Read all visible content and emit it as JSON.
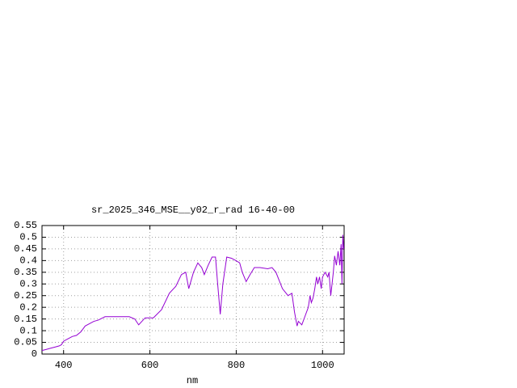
{
  "chart_data": {
    "type": "line",
    "title": "sr_2025_346_MSE__y02_r_rad 16-40-00",
    "xlabel": "nm",
    "color": "#9400d3",
    "grid": true,
    "xlim": [
      350,
      1050
    ],
    "xticks": [
      400,
      600,
      800,
      1000
    ],
    "ylim": [
      0,
      0.55
    ],
    "yticks": [
      0,
      0.05,
      0.1,
      0.15,
      0.2,
      0.25,
      0.3,
      0.35,
      0.4,
      0.45,
      0.5,
      0.55
    ],
    "x": [
      350,
      360,
      370,
      380,
      390,
      395,
      400,
      410,
      420,
      430,
      440,
      450,
      460,
      470,
      480,
      496,
      510,
      530,
      552,
      565,
      574,
      589,
      608,
      627,
      645,
      660,
      673,
      683,
      690,
      701,
      711,
      720,
      726,
      735,
      744,
      752,
      757,
      763,
      769,
      778,
      789,
      799,
      808,
      814,
      823,
      832,
      842,
      855,
      873,
      883,
      892,
      907,
      920,
      929,
      935,
      941,
      944,
      952,
      959,
      967,
      971,
      974,
      978,
      982,
      986,
      989,
      993,
      997,
      1000,
      1006,
      1012,
      1015,
      1019,
      1025,
      1028,
      1032,
      1036,
      1040,
      1043,
      1045,
      1047,
      1049
    ],
    "values": [
      0.015,
      0.02,
      0.025,
      0.03,
      0.035,
      0.04,
      0.055,
      0.065,
      0.075,
      0.08,
      0.095,
      0.12,
      0.13,
      0.14,
      0.145,
      0.16,
      0.16,
      0.16,
      0.16,
      0.15,
      0.125,
      0.155,
      0.155,
      0.19,
      0.26,
      0.29,
      0.34,
      0.35,
      0.28,
      0.35,
      0.39,
      0.37,
      0.34,
      0.38,
      0.415,
      0.415,
      0.3,
      0.17,
      0.3,
      0.415,
      0.41,
      0.4,
      0.39,
      0.35,
      0.31,
      0.34,
      0.37,
      0.37,
      0.365,
      0.37,
      0.35,
      0.28,
      0.25,
      0.26,
      0.18,
      0.12,
      0.14,
      0.125,
      0.16,
      0.2,
      0.25,
      0.22,
      0.24,
      0.28,
      0.33,
      0.3,
      0.33,
      0.28,
      0.33,
      0.35,
      0.33,
      0.35,
      0.25,
      0.35,
      0.42,
      0.38,
      0.44,
      0.38,
      0.47,
      0.3,
      0.51,
      0.45
    ]
  }
}
